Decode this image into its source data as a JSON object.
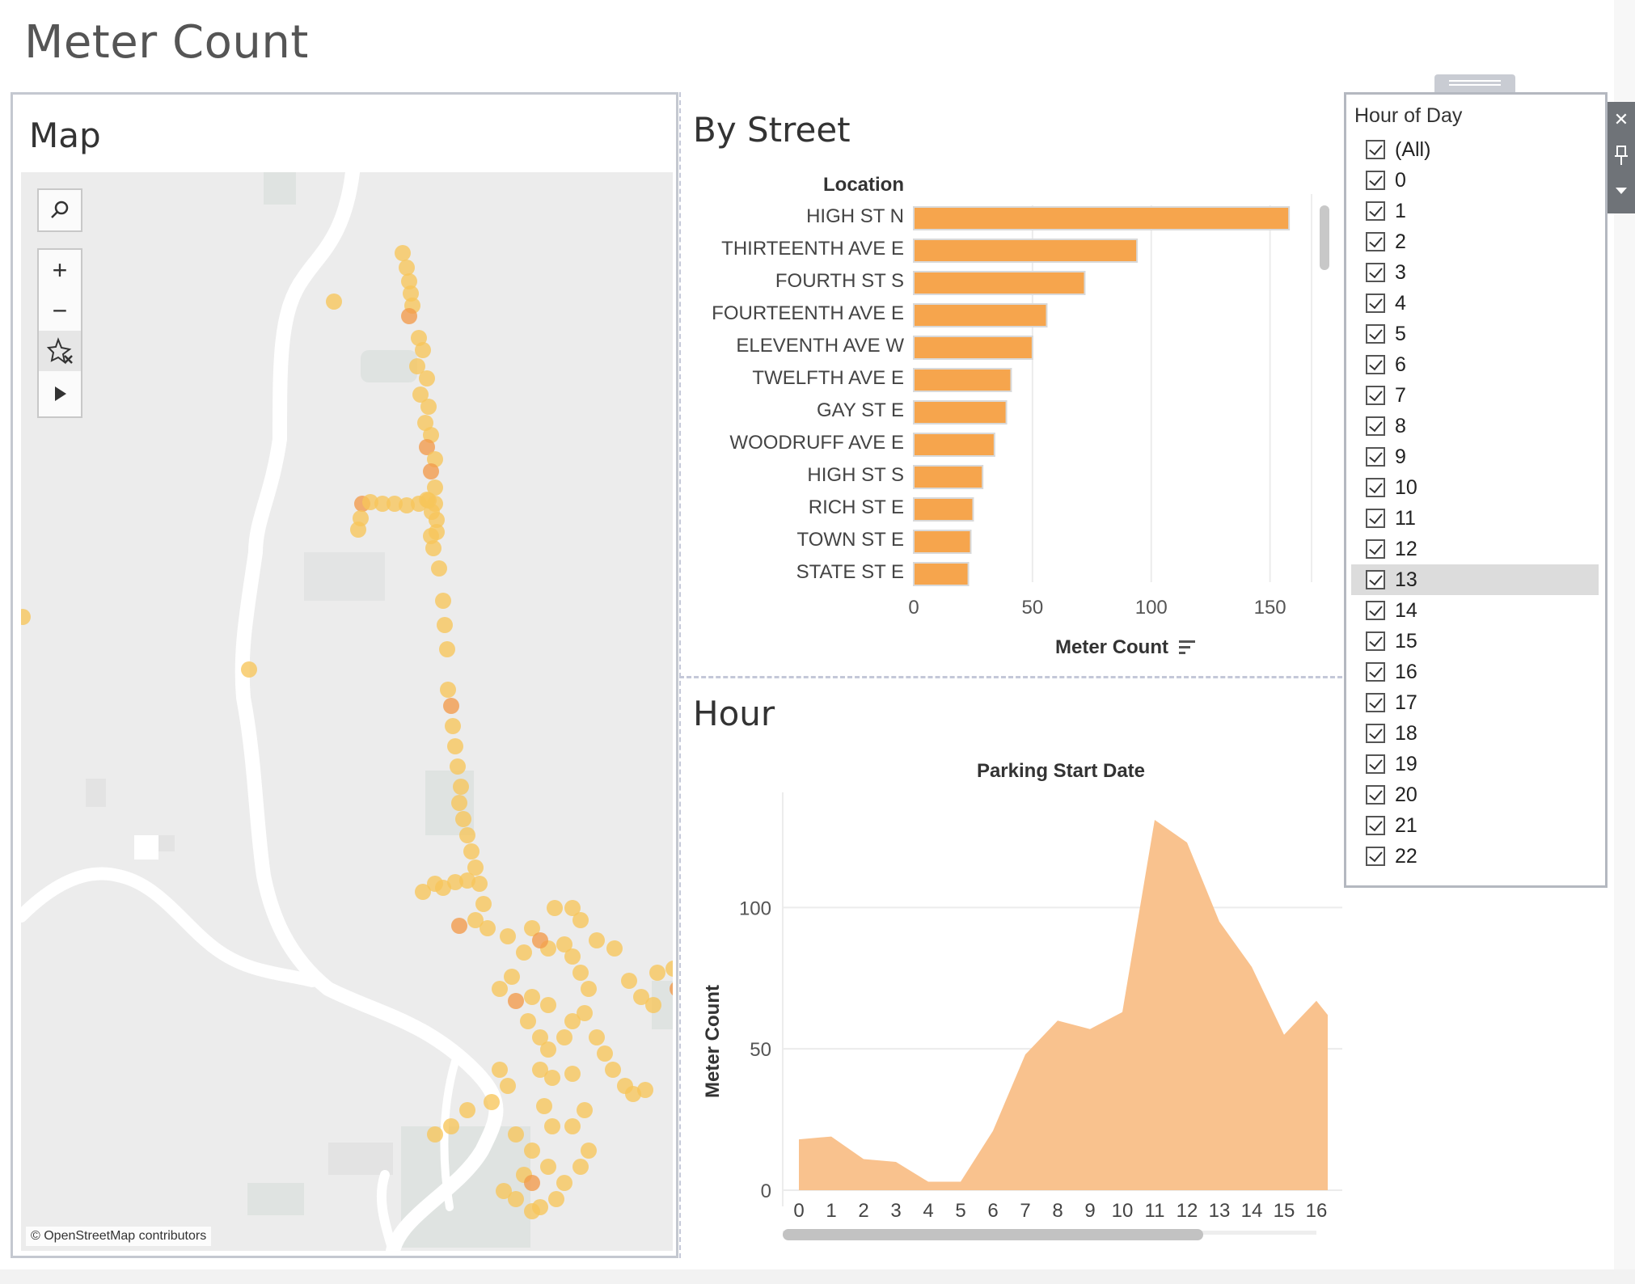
{
  "dashboard": {
    "title": "Meter Count"
  },
  "map": {
    "title": "Map",
    "credit": "© OpenStreetMap contributors",
    "tools": [
      "search-icon",
      "zoom-in-icon",
      "zoom-out-icon",
      "unpin-icon",
      "play-icon"
    ],
    "zoom_in": "+",
    "zoom_out": "−",
    "colors": {
      "land": "#ececec",
      "river": "#ffffff",
      "park": "#dfe3e1",
      "point": "#f7c55a",
      "point_hot": "#f29a4a"
    }
  },
  "by_street": {
    "title": "By Street",
    "row_header": "Location",
    "axis_title": "Meter Count",
    "sort_icon": "sort-descending-icon"
  },
  "hour": {
    "title": "Hour",
    "chart_title": "Parking Start Date",
    "y_title": "Meter Count"
  },
  "chart_data": [
    {
      "type": "bar",
      "orientation": "horizontal",
      "categories": [
        "HIGH ST N",
        "THIRTEENTH AVE E",
        "FOURTH ST S",
        "FOURTEENTH AVE E",
        "ELEVENTH AVE W",
        "TWELFTH AVE E",
        "GAY ST E",
        "WOODRUFF AVE E",
        "HIGH ST S",
        "RICH ST E",
        "TOWN ST E",
        "STATE ST E"
      ],
      "values": [
        158,
        94,
        72,
        56,
        50,
        41,
        39,
        34,
        29,
        25,
        24,
        23
      ],
      "xlabel": "Meter Count",
      "ylabel": "Location",
      "xlim": [
        0,
        160
      ],
      "xticks": [
        0,
        50,
        100,
        150
      ],
      "color": "#f6a54d"
    },
    {
      "type": "area",
      "title": "Parking Start Date",
      "x": [
        "0",
        "1",
        "2",
        "3",
        "4",
        "5",
        "6",
        "7",
        "8",
        "9",
        "10",
        "11",
        "12",
        "13",
        "14",
        "15",
        "16"
      ],
      "values": [
        18,
        19,
        11,
        10,
        3,
        3,
        21,
        48,
        60,
        57,
        63,
        131,
        123,
        95,
        79,
        55,
        67
      ],
      "ylabel": "Meter Count",
      "ylim": [
        0,
        135
      ],
      "yticks": [
        0,
        50,
        100
      ],
      "color": "#f9c28e",
      "trailing_value": 62
    }
  ],
  "filter": {
    "title": "Hour of Day",
    "highlighted": "13",
    "items": [
      "(All)",
      "0",
      "1",
      "2",
      "3",
      "4",
      "5",
      "6",
      "7",
      "8",
      "9",
      "10",
      "11",
      "12",
      "13",
      "14",
      "15",
      "16",
      "17",
      "18",
      "19",
      "20",
      "21",
      "22"
    ],
    "side_icons": [
      "close-icon",
      "pin-icon",
      "dropdown-arrow-icon"
    ]
  }
}
